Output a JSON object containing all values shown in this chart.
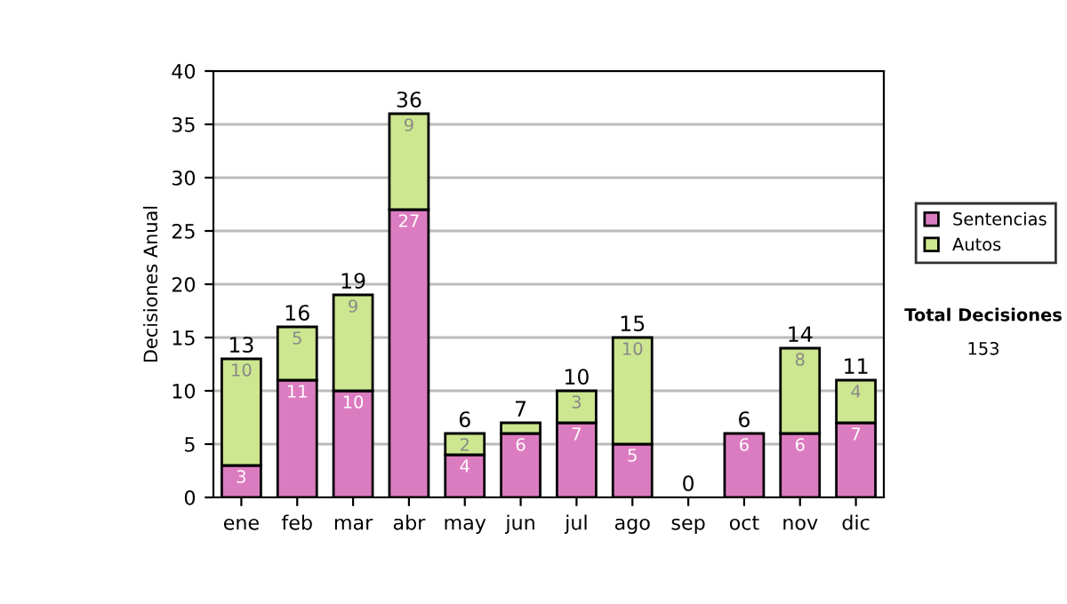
{
  "chart_data": {
    "type": "bar",
    "stacked": true,
    "ylabel": "Decisiones Anual",
    "categories": [
      "ene",
      "feb",
      "mar",
      "abr",
      "may",
      "jun",
      "jul",
      "ago",
      "sep",
      "oct",
      "nov",
      "dic"
    ],
    "series": [
      {
        "name": "Sentencias",
        "color": "#dc7cc0",
        "values": [
          3,
          11,
          10,
          27,
          4,
          6,
          7,
          5,
          0,
          6,
          6,
          7
        ],
        "value_labels": [
          "3",
          "11",
          "10",
          "27",
          "4",
          "6",
          "7",
          "5",
          null,
          "6",
          "6",
          "7"
        ]
      },
      {
        "name": "Autos",
        "color": "#cde690",
        "values": [
          10,
          5,
          9,
          9,
          2,
          1,
          3,
          10,
          0,
          0,
          8,
          4
        ],
        "value_labels": [
          "10",
          "5",
          "9",
          "9",
          "2",
          null,
          "3",
          "10",
          null,
          null,
          "8",
          "4"
        ]
      }
    ],
    "totals": [
      "13",
      "16",
      "19",
      "36",
      "6",
      "7",
      "10",
      "15",
      "0",
      "6",
      "14",
      "11"
    ],
    "ylim": [
      0,
      40
    ],
    "yticks": [
      0,
      5,
      10,
      15,
      20,
      25,
      30,
      35,
      40
    ],
    "grid": "y",
    "legend": "right",
    "annotations": [
      "Total Decisiones",
      "153"
    ]
  }
}
